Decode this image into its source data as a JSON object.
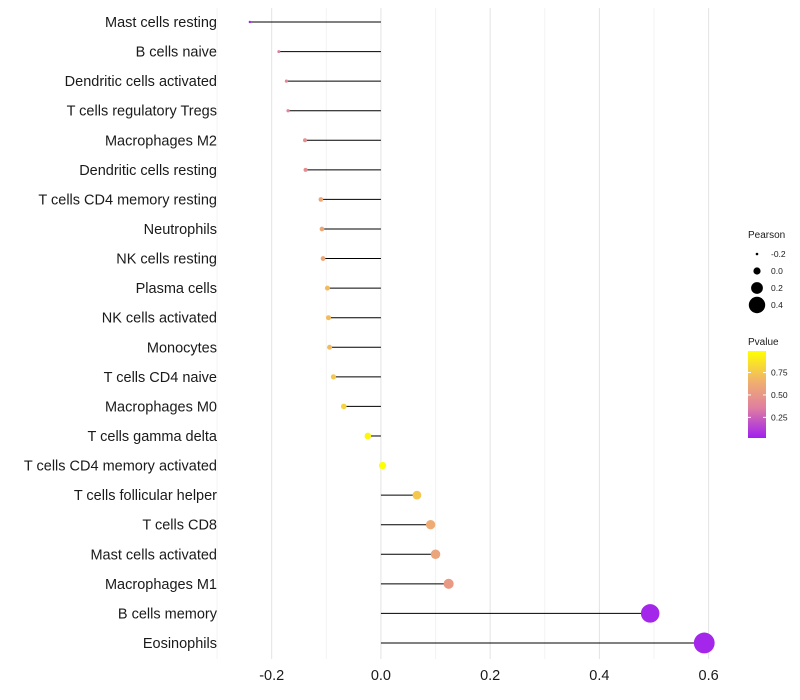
{
  "chart_data": {
    "type": "lollipop",
    "xlim": [
      -0.28,
      0.63
    ],
    "x_ticks": [
      -0.2,
      0.0,
      0.2,
      0.4,
      0.6
    ],
    "x_tick_labels": [
      "-0.2",
      "0.0",
      "0.2",
      "0.4",
      "0.6"
    ],
    "categories": [
      "Mast cells resting",
      "B cells naive",
      "Dendritic cells activated",
      "T cells regulatory  Tregs ",
      "Macrophages M2",
      "Dendritic cells resting",
      "T cells CD4 memory resting",
      "Neutrophils",
      "NK cells resting",
      "Plasma cells",
      "NK cells activated",
      "Monocytes",
      "T cells CD4 naive",
      "Macrophages M0",
      "T cells gamma delta",
      "T cells CD4 memory activated",
      "T cells follicular helper",
      "T cells CD8",
      "Mast cells activated",
      "Macrophages M1",
      "B cells memory",
      "Eosinophils"
    ],
    "pearson": [
      -0.24,
      -0.187,
      -0.173,
      -0.17,
      -0.139,
      -0.138,
      -0.11,
      -0.108,
      -0.106,
      -0.098,
      -0.096,
      -0.094,
      -0.087,
      -0.068,
      -0.024,
      0.003,
      0.066,
      0.091,
      0.1,
      0.124,
      0.493,
      0.592
    ],
    "pvalue": [
      0.02,
      0.35,
      0.4,
      0.4,
      0.45,
      0.45,
      0.6,
      0.6,
      0.6,
      0.7,
      0.7,
      0.7,
      0.75,
      0.8,
      0.95,
      0.99,
      0.75,
      0.62,
      0.58,
      0.52,
      0.04,
      0.04
    ],
    "legend": {
      "size_title": "Pearson",
      "size_values": [
        -0.2,
        0.0,
        0.2,
        0.4
      ],
      "size_labels": [
        "-0.2",
        "0.0",
        "0.2",
        "0.4"
      ],
      "color_title": "Pvalue",
      "color_ticks": [
        0.25,
        0.5,
        0.75
      ],
      "color_tick_labels": [
        "0.25",
        "0.50",
        "0.75"
      ],
      "color_range": [
        0.02,
        0.99
      ],
      "color_stops": [
        "#a020f0",
        "#e07fa0",
        "#f0b06e",
        "#ffff00"
      ]
    },
    "stem_color": "#000000",
    "grid": true,
    "legend_position": "right"
  }
}
